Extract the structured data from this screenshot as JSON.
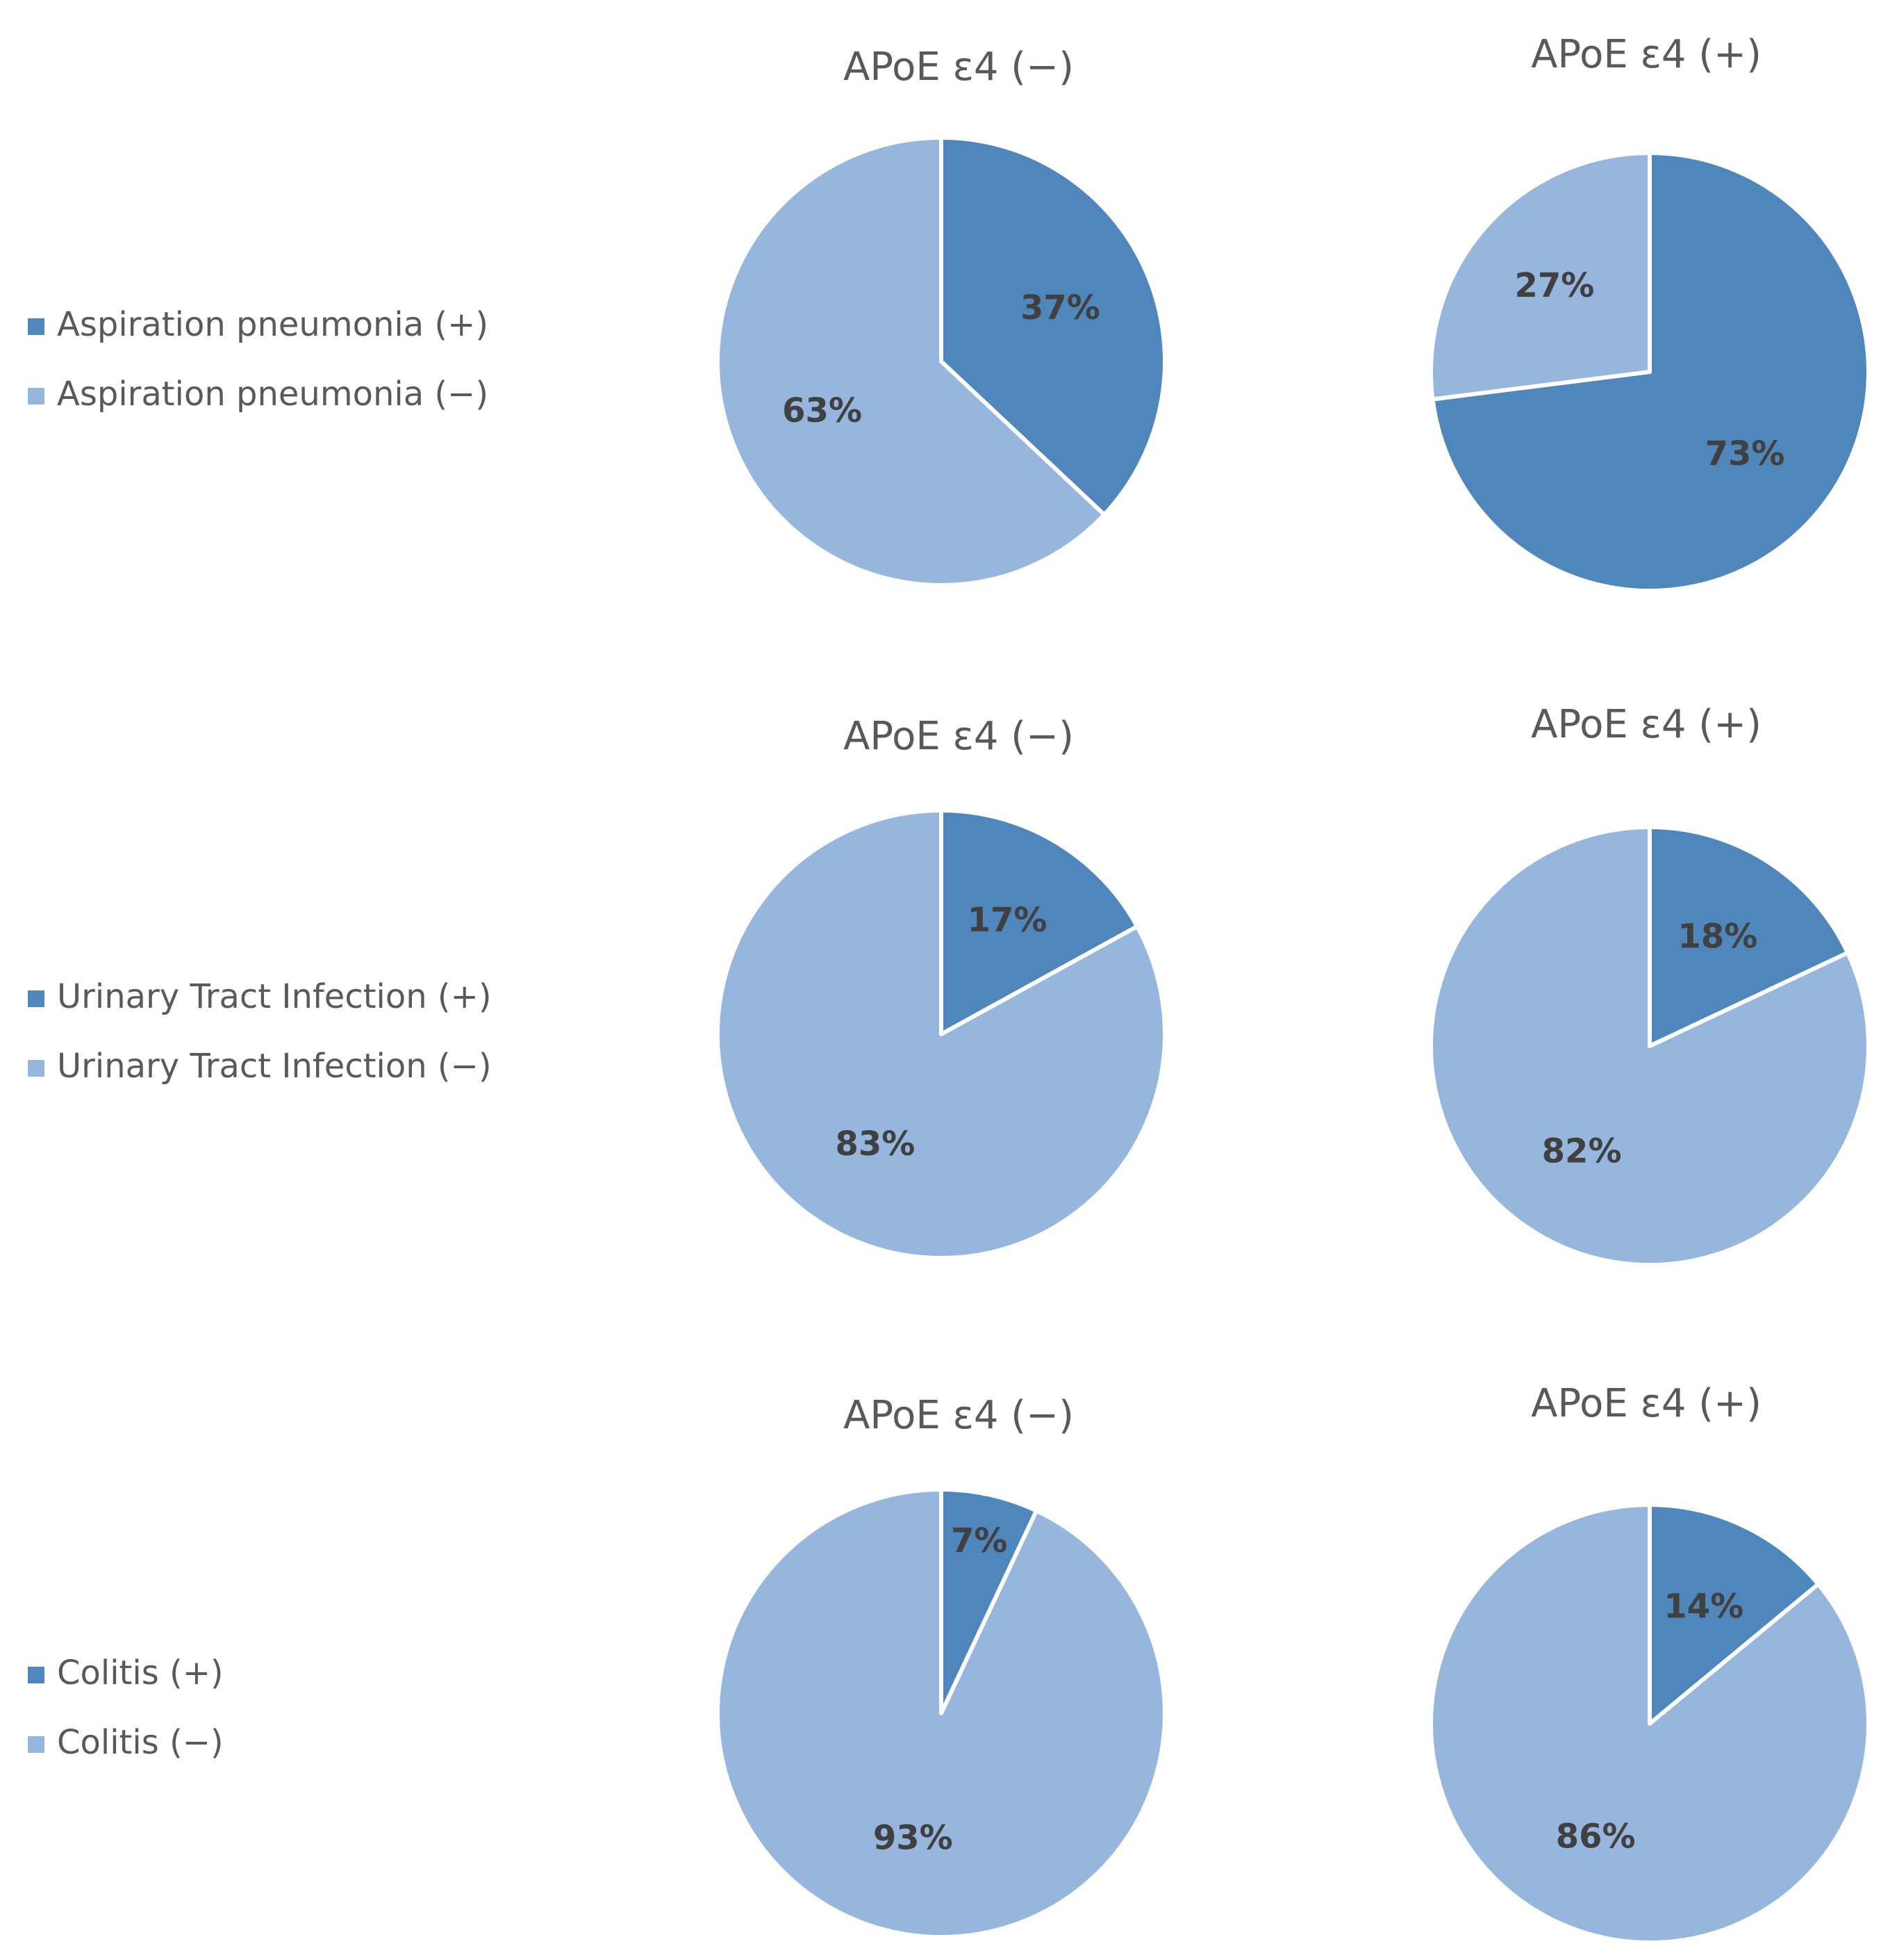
{
  "colors": {
    "positive": "#4f86bb",
    "negative": "#97b6de",
    "title_text": "#595959",
    "label_text": "#404040"
  },
  "chart_data": [
    {
      "type": "pie",
      "group": "Aspiration pneumonia",
      "title": "APoE ε4 (−)",
      "legend": [
        "Aspiration pneumonia (+)",
        "Aspiration pneumonia (−)"
      ],
      "legend_position": "left",
      "slices": [
        {
          "name": "Aspiration pneumonia (+)",
          "value": 37,
          "label": "37%"
        },
        {
          "name": "Aspiration pneumonia (−)",
          "value": 63,
          "label": "63%"
        }
      ]
    },
    {
      "type": "pie",
      "group": "Aspiration pneumonia",
      "title": "APoE ε4 (+)",
      "slices": [
        {
          "name": "Aspiration pneumonia (+)",
          "value": 73,
          "label": "73%"
        },
        {
          "name": "Aspiration pneumonia (−)",
          "value": 27,
          "label": "27%"
        }
      ]
    },
    {
      "type": "pie",
      "group": "Urinary Tract Infection",
      "title": "APoE ε4 (−)",
      "legend": [
        "Urinary Tract Infection (+)",
        "Urinary Tract Infection (−)"
      ],
      "legend_position": "left",
      "slices": [
        {
          "name": "Urinary Tract Infection (+)",
          "value": 17,
          "label": "17%"
        },
        {
          "name": "Urinary Tract Infection (−)",
          "value": 83,
          "label": "83%"
        }
      ]
    },
    {
      "type": "pie",
      "group": "Urinary Tract Infection",
      "title": "APoE ε4 (+)",
      "slices": [
        {
          "name": "Urinary Tract Infection (+)",
          "value": 18,
          "label": "18%"
        },
        {
          "name": "Urinary Tract Infection (−)",
          "value": 82,
          "label": "82%"
        }
      ]
    },
    {
      "type": "pie",
      "group": "Colitis",
      "title": "APoE ε4 (−)",
      "legend": [
        "Colitis (+)",
        "Colitis (−)"
      ],
      "legend_position": "left",
      "slices": [
        {
          "name": "Colitis (+)",
          "value": 7,
          "label": "7%"
        },
        {
          "name": "Colitis (−)",
          "value": 93,
          "label": "93%"
        }
      ]
    },
    {
      "type": "pie",
      "group": "Colitis",
      "title": "APoE ε4 (+)",
      "slices": [
        {
          "name": "Colitis (+)",
          "value": 14,
          "label": "14%"
        },
        {
          "name": "Colitis (−)",
          "value": 86,
          "label": "86%"
        }
      ]
    }
  ]
}
